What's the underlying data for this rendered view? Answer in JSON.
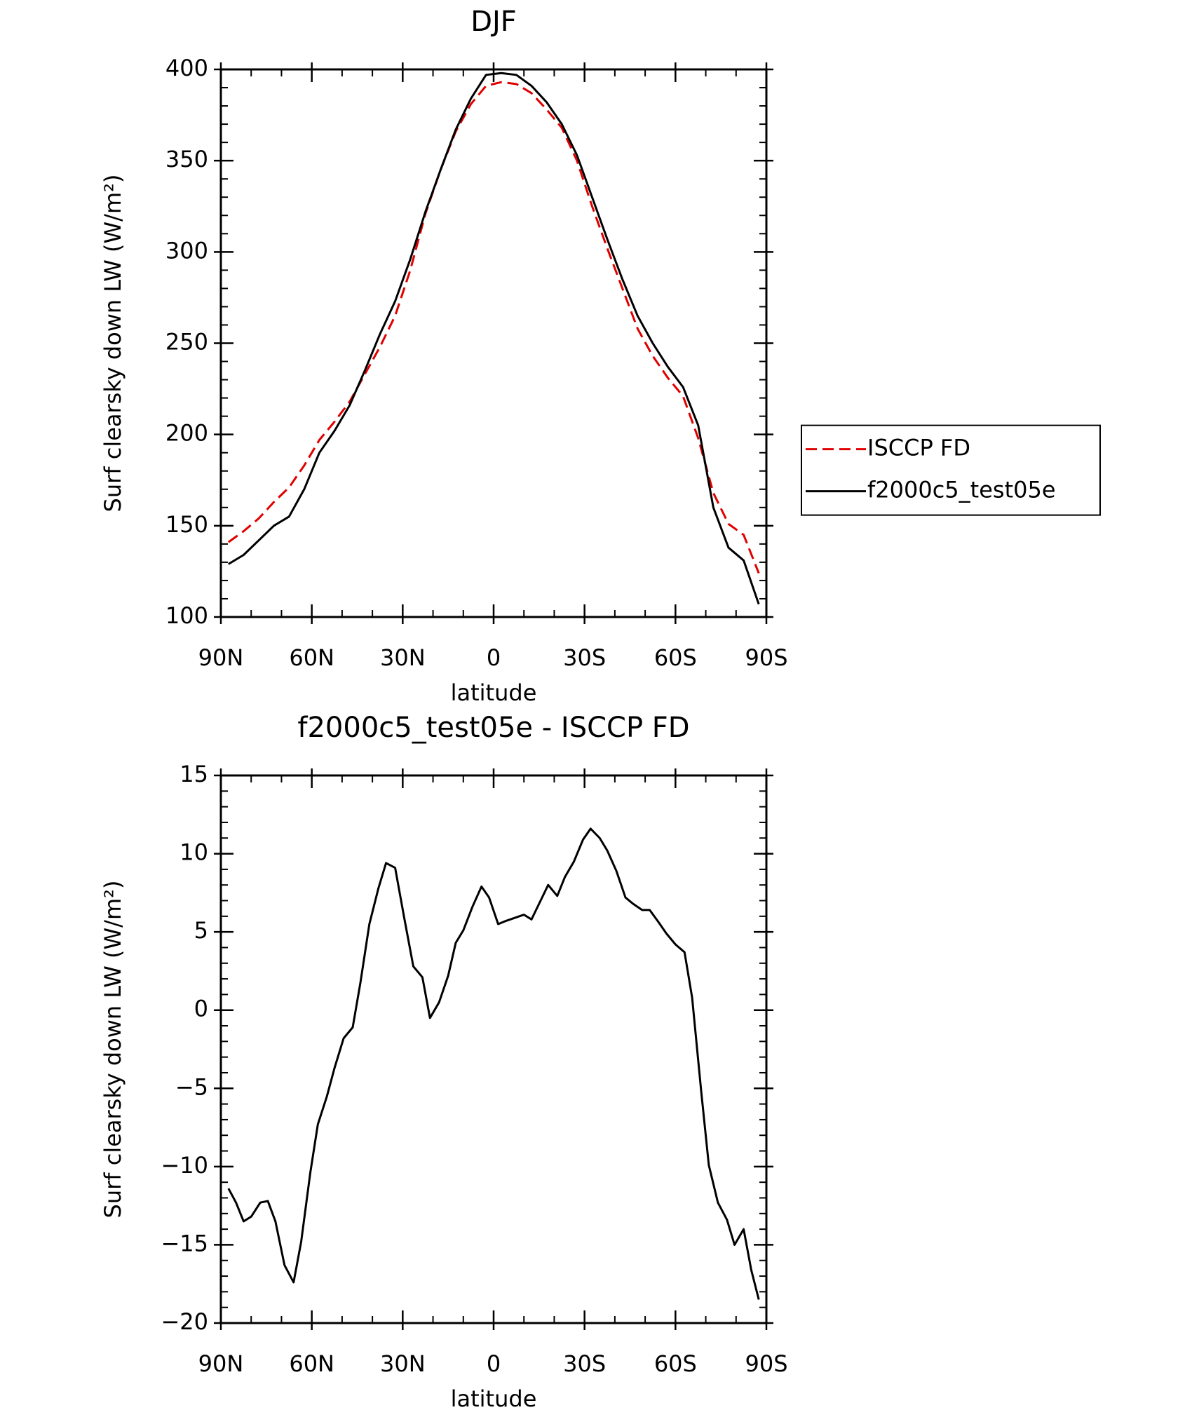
{
  "chart_data": [
    {
      "type": "line",
      "title": "DJF",
      "xlabel": "latitude",
      "ylabel": "Surf clearsky down LW (W/m²)",
      "x": [
        87.5,
        82.5,
        77.5,
        72.5,
        67.5,
        62.5,
        57.5,
        52.5,
        47.5,
        42.5,
        37.5,
        32.5,
        27.5,
        22.5,
        17.5,
        12.5,
        7.5,
        2.5,
        -2.5,
        -7.5,
        -12.5,
        -17.5,
        -22.5,
        -27.5,
        -32.5,
        -37.5,
        -42.5,
        -47.5,
        -52.5,
        -57.5,
        -62.5,
        -67.5,
        -72.5,
        -77.5,
        -82.5,
        -87.5
      ],
      "series": [
        {
          "name": "ISCCP FD",
          "color": "#e00000",
          "linestyle": "dashed",
          "values": [
            141,
            147,
            154,
            163,
            171,
            183,
            197,
            207,
            218,
            233,
            248,
            265,
            290,
            321,
            345,
            366,
            381,
            391,
            393,
            392,
            387,
            378,
            368,
            350,
            325,
            302,
            280,
            258,
            243,
            231,
            221,
            198,
            168,
            151,
            145,
            124
          ]
        },
        {
          "name": "f2000c5_test05e",
          "color": "#000000",
          "linestyle": "solid",
          "values": [
            129,
            134,
            142,
            150,
            155,
            170,
            190,
            202,
            216,
            235,
            255,
            273,
            296,
            322,
            345,
            367,
            384,
            397,
            398,
            397,
            391,
            382,
            370,
            353,
            330,
            307,
            285,
            265,
            250,
            237,
            226,
            205,
            160,
            138,
            131,
            107
          ]
        }
      ],
      "xlim": [
        90,
        -90
      ],
      "xticks": [
        {
          "value": 90,
          "label": "90N"
        },
        {
          "value": 60,
          "label": "60N"
        },
        {
          "value": 30,
          "label": "30N"
        },
        0,
        {
          "value": -30,
          "label": "30S"
        },
        {
          "value": -60,
          "label": "60S"
        },
        {
          "value": -90,
          "label": "90S"
        }
      ],
      "ylim": [
        100,
        400
      ],
      "yticks": [
        100,
        150,
        200,
        250,
        300,
        350,
        400
      ],
      "legend": "outside-right"
    },
    {
      "type": "line",
      "title": "f2000c5_test05e - ISCCP FD",
      "xlabel": "latitude",
      "ylabel": "Surf clearsky down LW (W/m²)",
      "x": [
        87.5,
        85,
        82.5,
        80,
        77,
        74.5,
        72,
        69,
        66,
        63.5,
        60.5,
        58,
        55,
        52.5,
        49.5,
        46.5,
        44,
        41,
        38,
        35.5,
        32.5,
        29.5,
        26.5,
        23.5,
        21,
        18,
        15,
        12.5,
        10,
        7,
        4,
        1.5,
        -1.5,
        -4,
        -7,
        -10,
        -12.5,
        -15,
        -18,
        -21,
        -23.5,
        -26.5,
        -29.5,
        -32,
        -35,
        -37.5,
        -40.5,
        -43.5,
        -46,
        -49,
        -51.5,
        -54.5,
        -57,
        -60,
        -63,
        -65.5,
        -68.5,
        -71,
        -74,
        -77,
        -79.5,
        -82.5,
        -85,
        -87.5
      ],
      "series": [
        {
          "name": "f2000c5_test05e",
          "color": "#000000",
          "linestyle": "solid",
          "values": [
            -11.4,
            -12.3,
            -13.5,
            -13.2,
            -12.3,
            -12.2,
            -13.5,
            -16.3,
            -17.4,
            -14.8,
            -10.4,
            -7.3,
            -5.5,
            -3.7,
            -1.8,
            -1.1,
            1.7,
            5.5,
            7.8,
            9.4,
            9.1,
            5.9,
            2.8,
            2.1,
            -0.5,
            0.5,
            2.2,
            4.3,
            5.1,
            6.6,
            7.9,
            7.2,
            5.5,
            5.7,
            5.9,
            6.1,
            5.8,
            6.8,
            8.0,
            7.3,
            8.5,
            9.5,
            10.9,
            11.6,
            11.0,
            10.2,
            8.9,
            7.2,
            6.8,
            6.4,
            6.4,
            5.6,
            4.9,
            4.2,
            3.7,
            0.8,
            -5.2,
            -9.9,
            -12.3,
            -13.4,
            -15.0,
            -14.0,
            -16.6,
            -18.5
          ]
        }
      ],
      "xlim": [
        90,
        -90
      ],
      "xticks": [
        {
          "value": 90,
          "label": "90N"
        },
        {
          "value": 60,
          "label": "60N"
        },
        {
          "value": 30,
          "label": "30N"
        },
        0,
        {
          "value": -30,
          "label": "30S"
        },
        {
          "value": -60,
          "label": "60S"
        },
        {
          "value": -90,
          "label": "90S"
        }
      ],
      "ylim": [
        -20,
        15
      ],
      "yticks": [
        {
          "value": -20,
          "label": "−20"
        },
        {
          "value": -15,
          "label": "−15"
        },
        {
          "value": -10,
          "label": "−10"
        },
        {
          "value": -5,
          "label": "−5"
        },
        0,
        5,
        10,
        15
      ]
    }
  ]
}
